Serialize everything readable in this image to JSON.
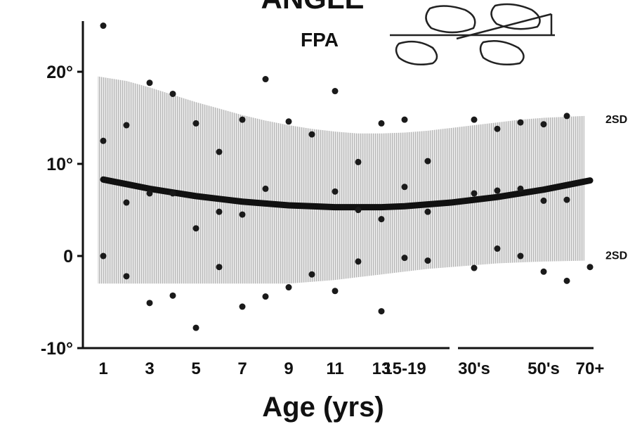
{
  "chart_data": {
    "type": "scatter",
    "title": "ANGLE",
    "subtitle": "FPA",
    "xlabel": "Age (yrs)",
    "categories": [
      "1",
      null,
      "3",
      null,
      "5",
      null,
      "7",
      null,
      "9",
      null,
      "11",
      null,
      "13",
      "15-19",
      null,
      null,
      "30's",
      null,
      null,
      "50's",
      null,
      "70+"
    ],
    "ylim": [
      -10,
      25.5
    ],
    "yticks": [
      {
        "value": -10,
        "label": "-10°"
      },
      0,
      {
        "value": 10,
        "label": "10°"
      },
      {
        "value": 20,
        "label": "20°"
      }
    ],
    "series": [
      {
        "color": "#1a1a1a",
        "values": [
          25,
          14.2,
          18.8,
          17.6,
          14.4,
          11.3,
          14.8,
          19.2,
          14.6,
          13.2,
          17.9,
          10.2,
          14.4,
          14.8,
          10.3,
          null,
          14.8,
          13.8,
          14.5,
          14.3,
          15.2,
          null
        ]
      },
      {
        "color": "#1a1a1a",
        "values": [
          12.5,
          5.8,
          6.8,
          6.8,
          3.0,
          4.8,
          4.5,
          7.3,
          null,
          null,
          7.0,
          5.0,
          4.0,
          7.5,
          4.8,
          null,
          6.8,
          7.1,
          7.3,
          6.0,
          6.1,
          null
        ]
      },
      {
        "color": "#1a1a1a",
        "values": [
          0,
          -2.2,
          -5.1,
          -4.3,
          -7.8,
          -1.2,
          -5.5,
          -4.4,
          -3.4,
          -2.0,
          -3.8,
          -0.6,
          -6.0,
          -0.2,
          -0.5,
          null,
          -1.3,
          0.8,
          0.0,
          -1.7,
          -2.7,
          -1.2
        ]
      }
    ],
    "mean": {
      "color": "#111111",
      "values": [
        8.3,
        7.8,
        7.3,
        6.9,
        6.5,
        6.2,
        5.9,
        5.7,
        5.5,
        5.4,
        5.3,
        5.3,
        5.3,
        5.4,
        5.6,
        5.8,
        6.1,
        6.4,
        6.8,
        7.2,
        7.7,
        8.2
      ]
    },
    "band": {
      "color": "#c8c8c8",
      "upper_label": "2SD",
      "lower_label": "2SD",
      "upper": [
        19.5,
        19,
        18.3,
        17.5,
        16.7,
        16,
        15.3,
        14.7,
        14.2,
        13.8,
        13.5,
        13.3,
        13.3,
        13.4,
        13.6,
        13.9,
        14.2,
        14.5,
        14.8,
        15,
        15.2,
        null
      ],
      "lower": [
        -3,
        -3,
        -3,
        -3,
        -3,
        -3,
        -3,
        -3,
        -3,
        -2.8,
        -2.6,
        -2.3,
        -2,
        -1.7,
        -1.4,
        -1.2,
        -1,
        -0.8,
        -0.7,
        -0.6,
        -0.5,
        null
      ]
    }
  }
}
